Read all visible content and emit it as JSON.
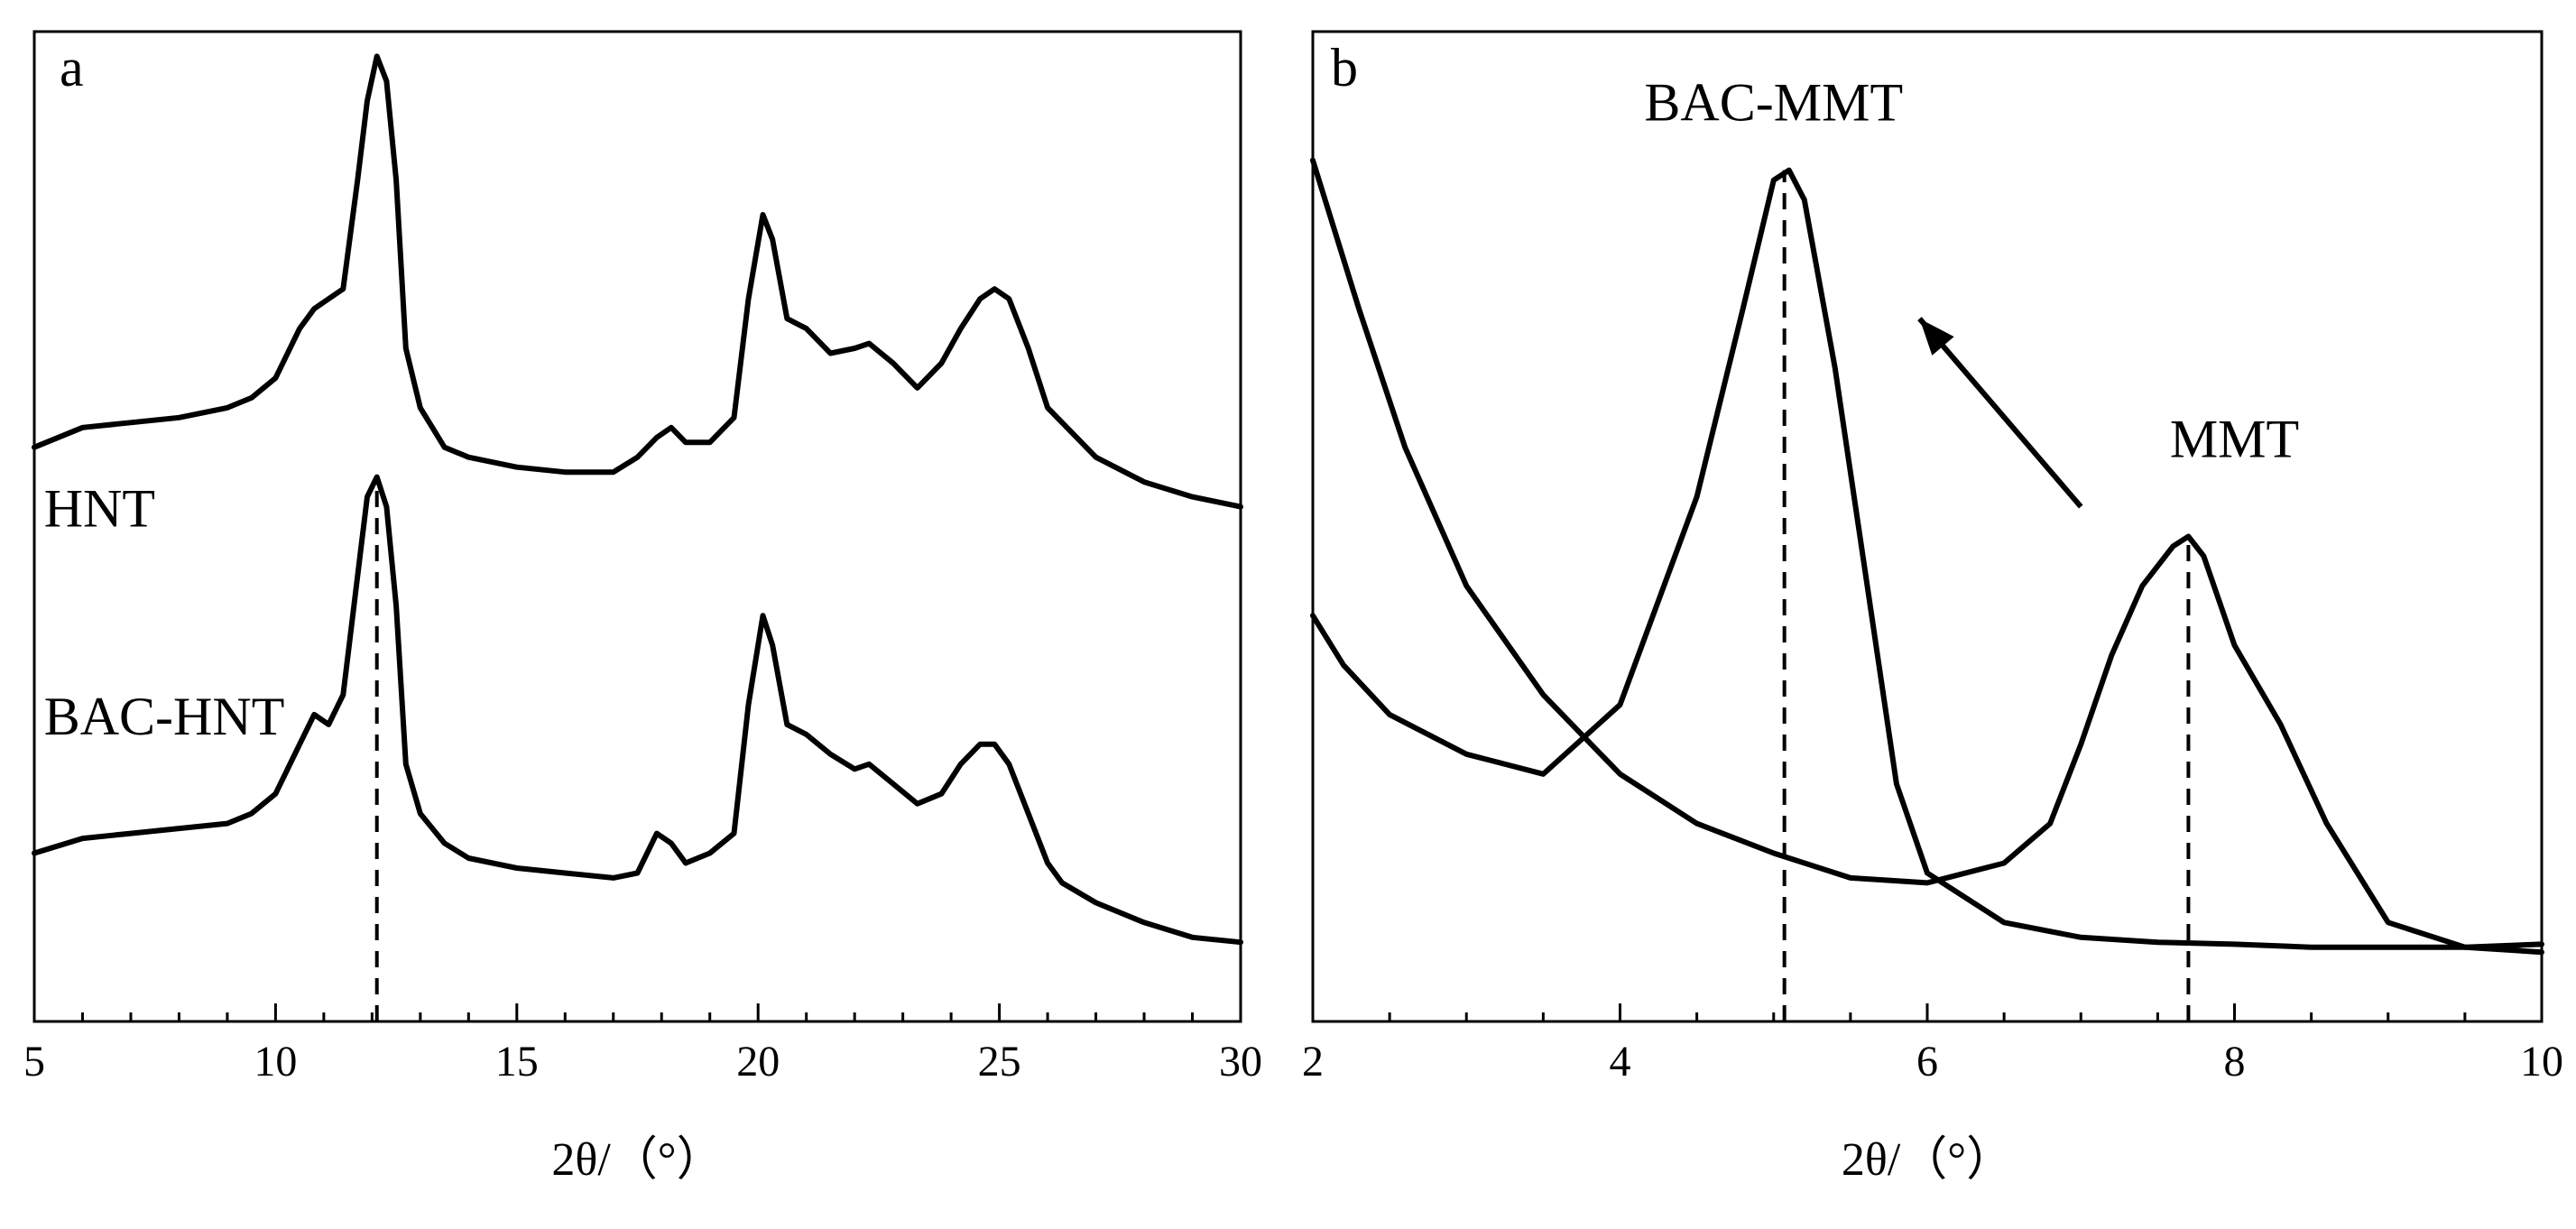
{
  "chart_data": [
    {
      "type": "line",
      "panel": "a",
      "xlabel": "2θ/（°）",
      "xlim": [
        5,
        30
      ],
      "xticks": [
        5,
        10,
        15,
        20,
        25,
        30
      ],
      "minor_xtick_step": 1,
      "y_axis_shown": false,
      "grid": false,
      "legend": "labels placed at left of each curve",
      "ylim": [
        0,
        1
      ],
      "series": [
        {
          "name": "HNT",
          "label_at": [
            5.2,
            0.5
          ],
          "x": [
            5,
            6,
            7,
            8,
            9,
            9.5,
            10,
            10.5,
            10.8,
            11.1,
            11.4,
            11.7,
            11.9,
            12.1,
            12.3,
            12.5,
            12.7,
            13,
            13.5,
            14,
            15,
            16,
            17,
            17.5,
            17.9,
            18.2,
            18.5,
            19,
            19.5,
            19.8,
            20.1,
            20.3,
            20.6,
            21,
            21.5,
            22,
            22.3,
            22.8,
            23.3,
            23.8,
            24.2,
            24.6,
            24.9,
            25.2,
            25.6,
            26,
            27,
            28,
            29,
            30
          ],
          "y": [
            0.58,
            0.6,
            0.605,
            0.61,
            0.62,
            0.63,
            0.65,
            0.7,
            0.72,
            0.73,
            0.74,
            0.85,
            0.93,
            0.975,
            0.95,
            0.85,
            0.68,
            0.62,
            0.58,
            0.57,
            0.56,
            0.555,
            0.555,
            0.57,
            0.59,
            0.6,
            0.585,
            0.585,
            0.61,
            0.73,
            0.815,
            0.79,
            0.71,
            0.7,
            0.675,
            0.68,
            0.685,
            0.665,
            0.64,
            0.665,
            0.7,
            0.73,
            0.74,
            0.73,
            0.68,
            0.62,
            0.57,
            0.545,
            0.53,
            0.52
          ]
        },
        {
          "name": "BAC-HNT",
          "label_at": [
            5.2,
            0.29
          ],
          "x": [
            5,
            6,
            7,
            8,
            9,
            9.5,
            10,
            10.5,
            10.8,
            11.1,
            11.4,
            11.7,
            11.9,
            12.1,
            12.3,
            12.5,
            12.7,
            13,
            13.5,
            14,
            15,
            16,
            17,
            17.5,
            17.9,
            18.2,
            18.5,
            19,
            19.5,
            19.8,
            20.1,
            20.3,
            20.6,
            21,
            21.5,
            22,
            22.3,
            22.8,
            23.3,
            23.8,
            24.2,
            24.6,
            24.9,
            25.2,
            25.6,
            26,
            26.3,
            27,
            28,
            29,
            30
          ],
          "y": [
            0.17,
            0.185,
            0.19,
            0.195,
            0.2,
            0.21,
            0.23,
            0.28,
            0.31,
            0.3,
            0.33,
            0.45,
            0.53,
            0.55,
            0.52,
            0.42,
            0.26,
            0.21,
            0.18,
            0.165,
            0.155,
            0.15,
            0.145,
            0.15,
            0.19,
            0.18,
            0.16,
            0.17,
            0.19,
            0.32,
            0.41,
            0.38,
            0.3,
            0.29,
            0.27,
            0.255,
            0.26,
            0.24,
            0.22,
            0.23,
            0.26,
            0.28,
            0.28,
            0.26,
            0.21,
            0.16,
            0.14,
            0.12,
            0.1,
            0.085,
            0.08
          ]
        }
      ],
      "annotations": [
        {
          "type": "dashed-vline",
          "x": 12.1,
          "y_from": 0,
          "y_to": 0.55
        }
      ]
    },
    {
      "type": "line",
      "panel": "b",
      "xlabel": "2θ/（°）",
      "xlim": [
        2,
        10
      ],
      "xticks": [
        2,
        4,
        6,
        8,
        10
      ],
      "minor_xtick_step": 0.5,
      "y_axis_shown": false,
      "grid": false,
      "legend": "labels placed above each peak",
      "ylim": [
        0,
        1
      ],
      "series": [
        {
          "name": "BAC-MMT",
          "label_at": [
            5.0,
            0.91
          ],
          "x": [
            2,
            2.2,
            2.5,
            3,
            3.5,
            4,
            4.5,
            4.8,
            5.0,
            5.1,
            5.2,
            5.4,
            5.6,
            5.8,
            6.0,
            6.5,
            7,
            7.5,
            8,
            8.5,
            9,
            9.5,
            10
          ],
          "y": [
            0.41,
            0.36,
            0.31,
            0.27,
            0.25,
            0.32,
            0.53,
            0.72,
            0.85,
            0.86,
            0.83,
            0.66,
            0.45,
            0.24,
            0.15,
            0.1,
            0.085,
            0.08,
            0.078,
            0.075,
            0.075,
            0.075,
            0.078
          ]
        },
        {
          "name": "MMT",
          "label_at": [
            8.0,
            0.57
          ],
          "x": [
            2,
            2.3,
            2.6,
            3,
            3.5,
            4,
            4.5,
            5,
            5.5,
            6,
            6.5,
            6.8,
            7,
            7.2,
            7.4,
            7.6,
            7.7,
            7.8,
            8.0,
            8.3,
            8.6,
            9.0,
            9.5,
            10
          ],
          "y": [
            0.87,
            0.72,
            0.58,
            0.44,
            0.33,
            0.25,
            0.2,
            0.17,
            0.145,
            0.14,
            0.16,
            0.2,
            0.28,
            0.37,
            0.44,
            0.48,
            0.49,
            0.47,
            0.38,
            0.3,
            0.2,
            0.1,
            0.075,
            0.07
          ]
        }
      ],
      "annotations": [
        {
          "type": "dashed-vline",
          "x": 5.07,
          "y_from": 0,
          "y_to": 0.86
        },
        {
          "type": "dashed-vline",
          "x": 7.7,
          "y_from": 0,
          "y_to": 0.49
        },
        {
          "type": "arrow",
          "from": [
            7.0,
            0.52
          ],
          "to": [
            5.95,
            0.71
          ]
        }
      ]
    }
  ]
}
